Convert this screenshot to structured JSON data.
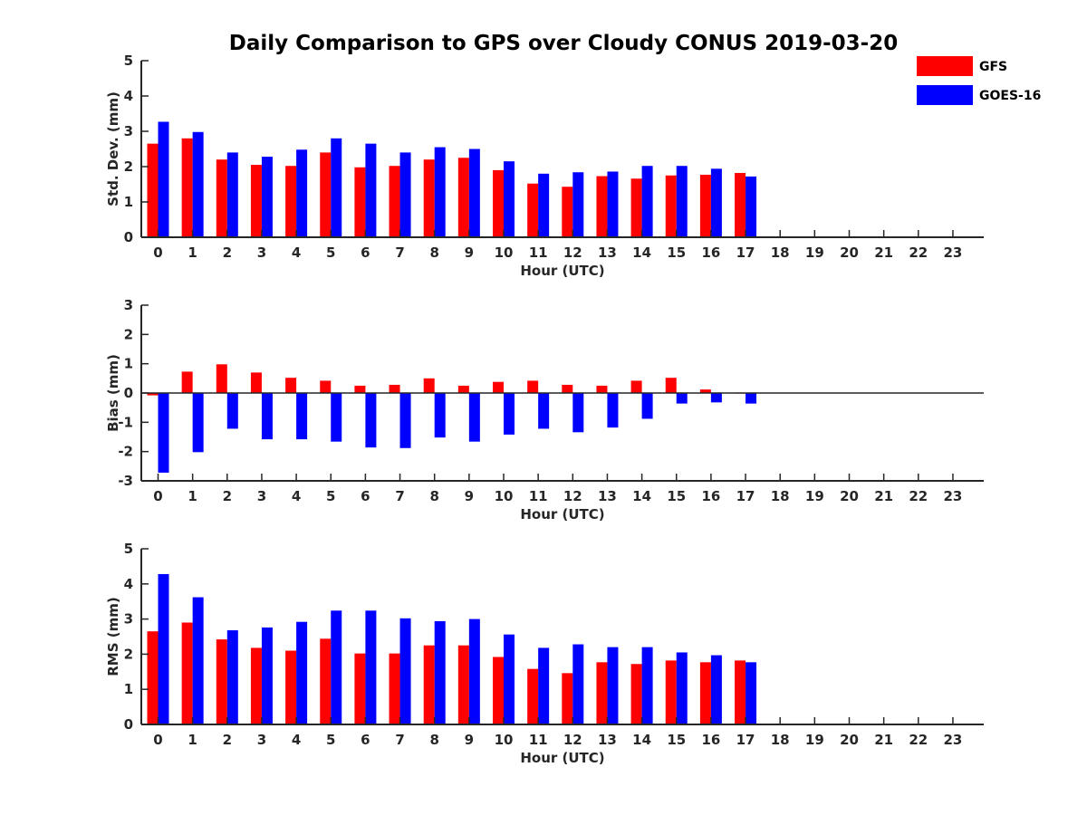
{
  "chart_data": {
    "title": "Daily Comparison to GPS over Cloudy CONUS 2019-03-20",
    "type": "bar",
    "legend": {
      "placement": "top-right",
      "entries": [
        {
          "name": "GFS",
          "color": "#ff0000"
        },
        {
          "name": "GOES-16",
          "color": "#0000ff"
        }
      ]
    },
    "panels": [
      {
        "id": "std",
        "ylabel": "Std. Dev. (mm)",
        "xlabel": "Hour (UTC)",
        "ylim": [
          0,
          5
        ],
        "yticks": [
          0,
          1,
          2,
          3,
          4,
          5
        ],
        "zero_line": false,
        "categories": [
          "0",
          "1",
          "2",
          "3",
          "4",
          "5",
          "6",
          "7",
          "8",
          "9",
          "10",
          "11",
          "12",
          "13",
          "14",
          "15",
          "16",
          "17",
          "18",
          "19",
          "20",
          "21",
          "22",
          "23"
        ],
        "series": [
          {
            "name": "GFS",
            "color": "#ff0000",
            "values": [
              2.65,
              2.8,
              2.2,
              2.05,
              2.02,
              2.4,
              1.98,
              2.02,
              2.2,
              2.25,
              1.9,
              1.52,
              1.43,
              1.73,
              1.66,
              1.75,
              1.77,
              1.82,
              null,
              null,
              null,
              null,
              null,
              null
            ]
          },
          {
            "name": "GOES-16",
            "color": "#0000ff",
            "values": [
              3.27,
              2.98,
              2.4,
              2.28,
              2.48,
              2.8,
              2.65,
              2.4,
              2.55,
              2.5,
              2.15,
              1.8,
              1.84,
              1.86,
              2.02,
              2.02,
              1.94,
              1.72,
              null,
              null,
              null,
              null,
              null,
              null
            ]
          }
        ]
      },
      {
        "id": "bias",
        "ylabel": "Bias (mm)",
        "xlabel": "Hour (UTC)",
        "ylim": [
          -3,
          3
        ],
        "yticks": [
          -3,
          -2,
          -1,
          0,
          1,
          2,
          3
        ],
        "zero_line": true,
        "categories": [
          "0",
          "1",
          "2",
          "3",
          "4",
          "5",
          "6",
          "7",
          "8",
          "9",
          "10",
          "11",
          "12",
          "13",
          "14",
          "15",
          "16",
          "17",
          "18",
          "19",
          "20",
          "21",
          "22",
          "23"
        ],
        "series": [
          {
            "name": "GFS",
            "color": "#ff0000",
            "values": [
              -0.08,
              0.73,
              0.98,
              0.7,
              0.52,
              0.42,
              0.25,
              0.28,
              0.5,
              0.25,
              0.38,
              0.42,
              0.28,
              0.25,
              0.42,
              0.52,
              0.12,
              -0.02,
              null,
              null,
              null,
              null,
              null,
              null
            ]
          },
          {
            "name": "GOES-16",
            "color": "#0000ff",
            "values": [
              -2.72,
              -2.02,
              -1.22,
              -1.58,
              -1.58,
              -1.66,
              -1.86,
              -1.88,
              -1.52,
              -1.66,
              -1.42,
              -1.22,
              -1.34,
              -1.18,
              -0.88,
              -0.36,
              -0.32,
              -0.36,
              null,
              null,
              null,
              null,
              null,
              null
            ]
          }
        ]
      },
      {
        "id": "rms",
        "ylabel": "RMS (mm)",
        "xlabel": "Hour (UTC)",
        "ylim": [
          0,
          5
        ],
        "yticks": [
          0,
          1,
          2,
          3,
          4,
          5
        ],
        "zero_line": false,
        "categories": [
          "0",
          "1",
          "2",
          "3",
          "4",
          "5",
          "6",
          "7",
          "8",
          "9",
          "10",
          "11",
          "12",
          "13",
          "14",
          "15",
          "16",
          "17",
          "18",
          "19",
          "20",
          "21",
          "22",
          "23"
        ],
        "series": [
          {
            "name": "GFS",
            "color": "#ff0000",
            "values": [
              2.65,
              2.9,
              2.42,
              2.18,
              2.1,
              2.44,
              2.02,
              2.02,
              2.25,
              2.25,
              1.92,
              1.58,
              1.46,
              1.77,
              1.72,
              1.82,
              1.77,
              1.82,
              null,
              null,
              null,
              null,
              null,
              null
            ]
          },
          {
            "name": "GOES-16",
            "color": "#0000ff",
            "values": [
              4.28,
              3.62,
              2.68,
              2.76,
              2.92,
              3.24,
              3.24,
              3.02,
              2.94,
              3.0,
              2.56,
              2.18,
              2.28,
              2.2,
              2.2,
              2.05,
              1.97,
              1.77,
              null,
              null,
              null,
              null,
              null,
              null
            ]
          }
        ]
      }
    ]
  }
}
